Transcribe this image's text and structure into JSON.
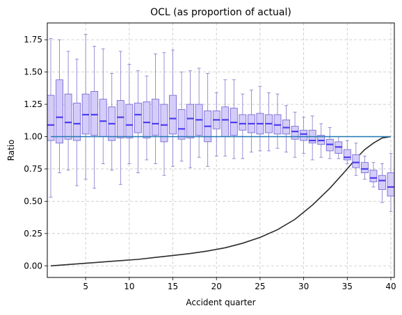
{
  "chart_data": {
    "type": "box",
    "title": "OCL (as proportion of actual)",
    "xlabel": "Accident quarter",
    "ylabel": "Ratio",
    "xlim": [
      0.6,
      40.4
    ],
    "ylim": [
      -0.09,
      1.88
    ],
    "x_ticks": [
      5,
      10,
      15,
      20,
      25,
      30,
      35,
      40
    ],
    "y_ticks": [
      0.0,
      0.25,
      0.5,
      0.75,
      1.0,
      1.25,
      1.5,
      1.75
    ],
    "y_tick_labels": [
      "0.00",
      "0.25",
      "0.50",
      "0.75",
      "1.00",
      "1.25",
      "1.50",
      "1.75"
    ],
    "grid": true,
    "colors": {
      "box_fill": "#d5ccfa",
      "box_edge": "#6a5fd0",
      "median": "#4b3cf0",
      "whisker": "#7f75c8",
      "reference_line": "#1f77b4",
      "curve": "#2b2b2b"
    },
    "boxes": [
      {
        "x": 1,
        "whislo": 0.53,
        "q1": 0.97,
        "med": 1.09,
        "q3": 1.32,
        "whishi": 1.76
      },
      {
        "x": 2,
        "whislo": 0.72,
        "q1": 0.95,
        "med": 1.15,
        "q3": 1.44,
        "whishi": 1.75
      },
      {
        "x": 3,
        "whislo": 0.74,
        "q1": 0.98,
        "med": 1.11,
        "q3": 1.33,
        "whishi": 1.66
      },
      {
        "x": 4,
        "whislo": 0.62,
        "q1": 0.97,
        "med": 1.1,
        "q3": 1.26,
        "whishi": 1.6
      },
      {
        "x": 5,
        "whislo": 0.67,
        "q1": 1.02,
        "med": 1.17,
        "q3": 1.33,
        "whishi": 1.79
      },
      {
        "x": 6,
        "whislo": 0.6,
        "q1": 1.01,
        "med": 1.17,
        "q3": 1.35,
        "whishi": 1.7
      },
      {
        "x": 7,
        "whislo": 0.79,
        "q1": 1.0,
        "med": 1.12,
        "q3": 1.29,
        "whishi": 1.68
      },
      {
        "x": 8,
        "whislo": 0.74,
        "q1": 0.97,
        "med": 1.1,
        "q3": 1.23,
        "whishi": 1.49
      },
      {
        "x": 9,
        "whislo": 0.63,
        "q1": 0.99,
        "med": 1.15,
        "q3": 1.28,
        "whishi": 1.66
      },
      {
        "x": 10,
        "whislo": 0.79,
        "q1": 0.99,
        "med": 1.09,
        "q3": 1.25,
        "whishi": 1.56
      },
      {
        "x": 11,
        "whislo": 0.72,
        "q1": 1.03,
        "med": 1.17,
        "q3": 1.26,
        "whishi": 1.51
      },
      {
        "x": 12,
        "whislo": 0.82,
        "q1": 0.99,
        "med": 1.11,
        "q3": 1.27,
        "whishi": 1.47
      },
      {
        "x": 13,
        "whislo": 0.79,
        "q1": 1.01,
        "med": 1.1,
        "q3": 1.29,
        "whishi": 1.64
      },
      {
        "x": 14,
        "whislo": 0.7,
        "q1": 0.96,
        "med": 1.09,
        "q3": 1.25,
        "whishi": 1.65
      },
      {
        "x": 15,
        "whislo": 0.77,
        "q1": 1.02,
        "med": 1.14,
        "q3": 1.32,
        "whishi": 1.67
      },
      {
        "x": 16,
        "whislo": 0.81,
        "q1": 0.98,
        "med": 1.06,
        "q3": 1.21,
        "whishi": 1.5
      },
      {
        "x": 17,
        "whislo": 0.76,
        "q1": 0.99,
        "med": 1.14,
        "q3": 1.25,
        "whishi": 1.51
      },
      {
        "x": 18,
        "whislo": 0.84,
        "q1": 1.01,
        "med": 1.13,
        "q3": 1.25,
        "whishi": 1.53
      },
      {
        "x": 19,
        "whislo": 0.77,
        "q1": 0.96,
        "med": 1.08,
        "q3": 1.2,
        "whishi": 1.49
      },
      {
        "x": 20,
        "whislo": 0.85,
        "q1": 1.06,
        "med": 1.13,
        "q3": 1.2,
        "whishi": 1.34
      },
      {
        "x": 21,
        "whislo": 0.85,
        "q1": 1.0,
        "med": 1.13,
        "q3": 1.23,
        "whishi": 1.44
      },
      {
        "x": 22,
        "whislo": 0.83,
        "q1": 1.01,
        "med": 1.11,
        "q3": 1.22,
        "whishi": 1.44
      },
      {
        "x": 23,
        "whislo": 0.83,
        "q1": 1.05,
        "med": 1.1,
        "q3": 1.17,
        "whishi": 1.33
      },
      {
        "x": 24,
        "whislo": 0.88,
        "q1": 1.03,
        "med": 1.1,
        "q3": 1.17,
        "whishi": 1.36
      },
      {
        "x": 25,
        "whislo": 0.89,
        "q1": 1.02,
        "med": 1.1,
        "q3": 1.18,
        "whishi": 1.39
      },
      {
        "x": 26,
        "whislo": 0.89,
        "q1": 1.03,
        "med": 1.1,
        "q3": 1.17,
        "whishi": 1.34
      },
      {
        "x": 27,
        "whislo": 0.91,
        "q1": 1.02,
        "med": 1.09,
        "q3": 1.17,
        "whishi": 1.33
      },
      {
        "x": 28,
        "whislo": 0.88,
        "q1": 1.02,
        "med": 1.07,
        "q3": 1.13,
        "whishi": 1.24
      },
      {
        "x": 29,
        "whislo": 0.84,
        "q1": 0.98,
        "med": 1.04,
        "q3": 1.08,
        "whishi": 1.19
      },
      {
        "x": 30,
        "whislo": 0.87,
        "q1": 0.97,
        "med": 1.02,
        "q3": 1.05,
        "whishi": 1.15
      },
      {
        "x": 31,
        "whislo": 0.82,
        "q1": 0.95,
        "med": 0.97,
        "q3": 1.05,
        "whishi": 1.16
      },
      {
        "x": 32,
        "whislo": 0.84,
        "q1": 0.94,
        "med": 0.97,
        "q3": 1.01,
        "whishi": 1.1
      },
      {
        "x": 33,
        "whislo": 0.83,
        "q1": 0.89,
        "med": 0.94,
        "q3": 0.98,
        "whishi": 1.07
      },
      {
        "x": 34,
        "whislo": 0.83,
        "q1": 0.87,
        "med": 0.92,
        "q3": 0.96,
        "whishi": 1.0
      },
      {
        "x": 35,
        "whislo": 0.79,
        "q1": 0.82,
        "med": 0.84,
        "q3": 0.9,
        "whishi": 0.97
      },
      {
        "x": 36,
        "whislo": 0.7,
        "q1": 0.76,
        "med": 0.8,
        "q3": 0.86,
        "whishi": 0.95
      },
      {
        "x": 37,
        "whislo": 0.67,
        "q1": 0.72,
        "med": 0.75,
        "q3": 0.8,
        "whishi": 0.85
      },
      {
        "x": 38,
        "whislo": 0.61,
        "q1": 0.65,
        "med": 0.68,
        "q3": 0.74,
        "whishi": 0.8
      },
      {
        "x": 39,
        "whislo": 0.49,
        "q1": 0.59,
        "med": 0.66,
        "q3": 0.7,
        "whishi": 0.79
      },
      {
        "x": 40,
        "whislo": 0.42,
        "q1": 0.54,
        "med": 0.61,
        "q3": 0.72,
        "whishi": 0.87
      }
    ],
    "reference_line": {
      "y": 1.0,
      "x_range": [
        1,
        40
      ]
    },
    "curve": {
      "x": [
        1,
        3,
        5,
        7,
        9,
        11,
        13,
        15,
        17,
        19,
        21,
        23,
        25,
        27,
        29,
        31,
        33,
        35,
        36,
        37,
        38,
        39,
        40
      ],
      "y": [
        0.0,
        0.01,
        0.02,
        0.03,
        0.04,
        0.05,
        0.065,
        0.08,
        0.095,
        0.115,
        0.14,
        0.175,
        0.22,
        0.28,
        0.36,
        0.47,
        0.6,
        0.75,
        0.83,
        0.9,
        0.95,
        0.99,
        1.0
      ]
    }
  }
}
